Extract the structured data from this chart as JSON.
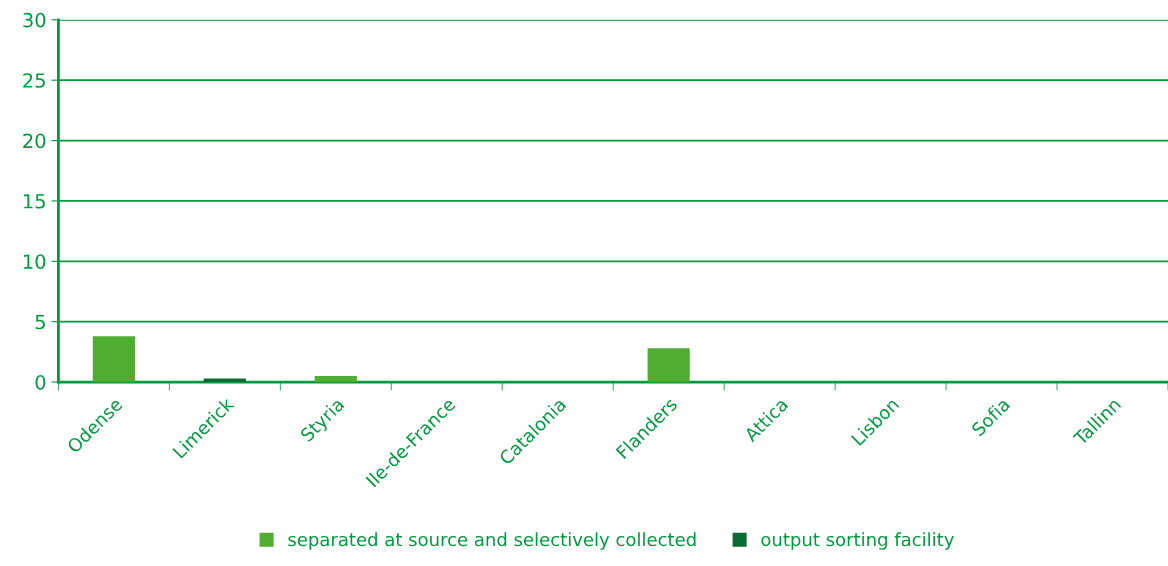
{
  "chart_data": {
    "type": "bar",
    "stacked": true,
    "categories": [
      "Odense",
      "Limerick",
      "Styria",
      "Ile-de-France",
      "Catalonia",
      "Flanders",
      "Attica",
      "Lisbon",
      "Sofia",
      "Tallinn"
    ],
    "series": [
      {
        "name": "separated at source and selectively collected",
        "color": "#4fad32",
        "values": [
          3.8,
          0,
          0.5,
          0,
          0,
          2.8,
          0,
          0,
          0,
          0
        ]
      },
      {
        "name": "output sorting facility",
        "color": "#0a6b34",
        "values": [
          0,
          0.3,
          0,
          0,
          0,
          0,
          0,
          0,
          0,
          0
        ]
      }
    ],
    "ylim": [
      0,
      30
    ],
    "yticks": [
      0,
      5,
      10,
      15,
      20,
      25,
      30
    ],
    "grid": "y",
    "legend": "bottom"
  }
}
